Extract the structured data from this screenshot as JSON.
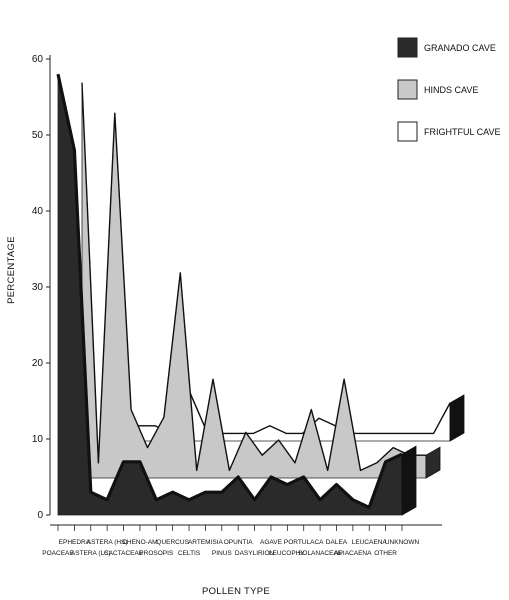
{
  "chart_data": {
    "type": "area",
    "title": "",
    "xlabel": "POLLEN TYPE",
    "ylabel": "PERCENTAGE",
    "ylim": [
      0,
      60
    ],
    "yticks": [
      0,
      10,
      20,
      30,
      40,
      50,
      60
    ],
    "grid": false,
    "legend_position": "top-right",
    "categories": [
      "POACEAE",
      "EPHEDRA",
      "ASTERA (LS)",
      "ASTERA (HS)",
      "CACTACEAE",
      "CHENO-AM",
      "PROSOPIS",
      "QUERCUS",
      "CELTIS",
      "ARTEMISIA",
      "PINUS",
      "OPUNTIA",
      "DASYLIRION",
      "AGAVE",
      "LEUCOPHY.",
      "PORTULACA",
      "SOLANACEAE",
      "DALEA",
      "APIACAENA",
      "LEUCAENA",
      "OTHER",
      "UNKNOWN"
    ],
    "series": [
      {
        "name": "GRANADO CAVE",
        "color": "#2a2a2a",
        "values": [
          58,
          48,
          3,
          2,
          7,
          7,
          2,
          3,
          2,
          3,
          3,
          5,
          2,
          5,
          4,
          5,
          2,
          4,
          2,
          1,
          7,
          8
        ]
      },
      {
        "name": "HINDS CAVE",
        "color": "#c8c8c8",
        "values": [
          52,
          2,
          48,
          9,
          4,
          8,
          27,
          1,
          13,
          1,
          6,
          3,
          5,
          2,
          9,
          1,
          13,
          1,
          2,
          4,
          3,
          3
        ]
      },
      {
        "name": "FRIGHTFUL CAVE",
        "color": "#ffffff",
        "values": [
          12,
          3,
          2,
          2,
          1,
          7,
          2,
          1,
          1,
          1,
          2,
          1,
          1,
          3,
          2,
          1,
          1,
          1,
          1,
          1,
          1,
          5
        ]
      }
    ]
  }
}
